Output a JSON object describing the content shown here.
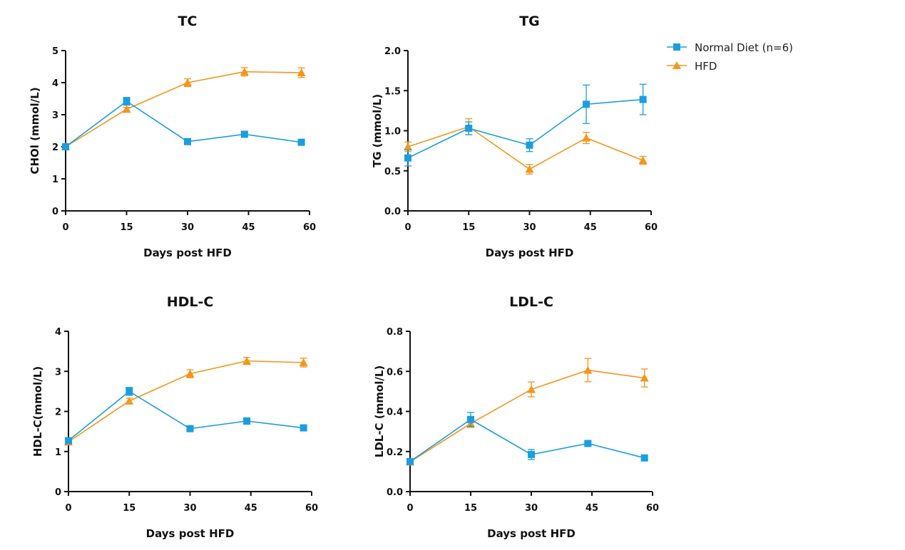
{
  "colors": {
    "normal": "#1a9ee0",
    "hfd": "#f5961c",
    "axis": "#111111"
  },
  "legend": [
    {
      "label": "Normal Diet (n=6)",
      "marker": "square",
      "color": "#1a9ee0"
    },
    {
      "label": "HFD",
      "marker": "triangle",
      "color": "#f5961c"
    }
  ],
  "chart_data": [
    {
      "type": "line",
      "title": "TC",
      "xlabel": "Days post HFD",
      "ylabel": "CHOl (mmol/L)",
      "xlim": [
        0,
        60
      ],
      "ylim": [
        0,
        5
      ],
      "xticks": [
        0,
        15,
        30,
        45,
        60
      ],
      "xtick_labels": [
        "0",
        "15",
        "30",
        "45",
        "60"
      ],
      "yticks": [
        0,
        1,
        2,
        3,
        4,
        5
      ],
      "ytick_labels": [
        "0",
        "1",
        "2",
        "3",
        "4",
        "5"
      ],
      "series": [
        {
          "name": "Normal Diet (n=6)",
          "marker": "square",
          "x": [
            0,
            15,
            30,
            44,
            58
          ],
          "values": [
            2.0,
            3.42,
            2.16,
            2.39,
            2.14
          ],
          "err": [
            0.03,
            0.12,
            0.05,
            0.05,
            0.04
          ]
        },
        {
          "name": "HFD",
          "marker": "triangle",
          "x": [
            0,
            15,
            30,
            44,
            58
          ],
          "values": [
            2.0,
            3.17,
            4.0,
            4.34,
            4.31
          ],
          "err": [
            0.04,
            0.06,
            0.12,
            0.13,
            0.15
          ]
        }
      ]
    },
    {
      "type": "line",
      "title": "TG",
      "xlabel": "Days post HFD",
      "ylabel": "TG (mmol/L)",
      "xlim": [
        0,
        60
      ],
      "ylim": [
        0,
        2
      ],
      "xticks": [
        0,
        15,
        30,
        45,
        60
      ],
      "xtick_labels": [
        "0",
        "15",
        "30",
        "45",
        "60"
      ],
      "yticks": [
        0,
        0.5,
        1.0,
        1.5,
        2.0
      ],
      "ytick_labels": [
        "0.0",
        "0.5",
        "1.0",
        "1.5",
        "2.0"
      ],
      "series": [
        {
          "name": "Normal Diet (n=6)",
          "marker": "square",
          "x": [
            0,
            15,
            30,
            44,
            58
          ],
          "values": [
            0.66,
            1.03,
            0.82,
            1.33,
            1.39
          ],
          "err": [
            0.1,
            0.08,
            0.08,
            0.24,
            0.19
          ]
        },
        {
          "name": "HFD",
          "marker": "triangle",
          "x": [
            0,
            15,
            30,
            44,
            58
          ],
          "values": [
            0.8,
            1.05,
            0.52,
            0.91,
            0.63
          ],
          "err": [
            0.06,
            0.1,
            0.06,
            0.07,
            0.05
          ]
        }
      ]
    },
    {
      "type": "line",
      "title": "HDL-C",
      "xlabel": "Days post HFD",
      "ylabel": "HDL-C(mmol/L)",
      "xlim": [
        0,
        60
      ],
      "ylim": [
        0,
        4
      ],
      "xticks": [
        0,
        15,
        30,
        45,
        60
      ],
      "xtick_labels": [
        "0",
        "15",
        "30",
        "45",
        "60"
      ],
      "yticks": [
        0,
        1,
        2,
        3,
        4
      ],
      "ytick_labels": [
        "0",
        "1",
        "2",
        "3",
        "4"
      ],
      "series": [
        {
          "name": "Normal Diet (n=6)",
          "marker": "square",
          "x": [
            0,
            15,
            30,
            44,
            58
          ],
          "values": [
            1.27,
            2.5,
            1.57,
            1.76,
            1.59
          ],
          "err": [
            0.04,
            0.1,
            0.04,
            0.08,
            0.04
          ]
        },
        {
          "name": "HFD",
          "marker": "triangle",
          "x": [
            0,
            15,
            30,
            44,
            58
          ],
          "values": [
            1.24,
            2.26,
            2.94,
            3.26,
            3.22
          ],
          "err": [
            0.04,
            0.07,
            0.1,
            0.09,
            0.11
          ]
        }
      ]
    },
    {
      "type": "line",
      "title": "LDL-C",
      "xlabel": "Days post HFD",
      "ylabel": "LDL-C (mmol/L)",
      "xlim": [
        0,
        60
      ],
      "ylim": [
        0,
        0.8
      ],
      "xticks": [
        0,
        15,
        30,
        45,
        60
      ],
      "xtick_labels": [
        "0",
        "15",
        "30",
        "45",
        "60"
      ],
      "yticks": [
        0,
        0.2,
        0.4,
        0.6,
        0.8
      ],
      "ytick_labels": [
        "0.0",
        "0.2",
        "0.4",
        "0.6",
        "0.8"
      ],
      "series": [
        {
          "name": "Normal Diet (n=6)",
          "marker": "square",
          "x": [
            0,
            15,
            30,
            44,
            58
          ],
          "values": [
            0.15,
            0.36,
            0.185,
            0.24,
            0.168
          ],
          "err": [
            0.01,
            0.035,
            0.025,
            0.01,
            0.008
          ]
        },
        {
          "name": "HFD",
          "marker": "triangle",
          "x": [
            0,
            15,
            30,
            44,
            58
          ],
          "values": [
            0.148,
            0.34,
            0.51,
            0.606,
            0.567
          ],
          "err": [
            0.01,
            0.02,
            0.037,
            0.058,
            0.045
          ]
        }
      ]
    }
  ]
}
